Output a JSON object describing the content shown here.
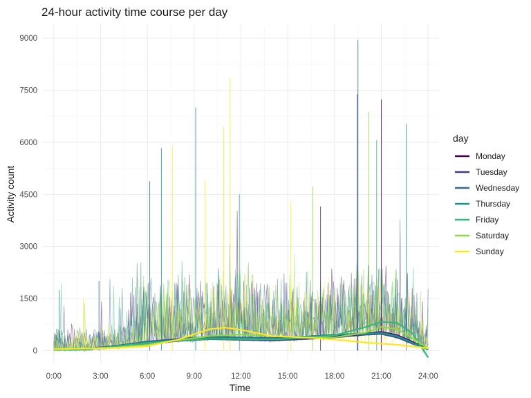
{
  "chart_data": {
    "type": "line",
    "title": "24-hour activity time course per day",
    "xlabel": "Time",
    "ylabel": "Activity count",
    "x_unit": "hours",
    "xlim": [
      -0.7,
      24.7
    ],
    "ylim": [
      -350,
      9400
    ],
    "x_ticks": [
      0,
      3,
      6,
      9,
      12,
      15,
      18,
      21,
      24
    ],
    "x_tick_labels": [
      "0:00",
      "3:00",
      "6:00",
      "9:00",
      "12:00",
      "15:00",
      "18:00",
      "21:00",
      "24:00"
    ],
    "y_ticks": [
      0,
      1500,
      3000,
      4500,
      6000,
      7500,
      9000
    ],
    "y_tick_labels": [
      "0",
      "1500",
      "3000",
      "4500",
      "6000",
      "7500",
      "9000"
    ],
    "grid": true,
    "legend": {
      "title": "day",
      "position": "right"
    },
    "colors": {
      "Monday": "#440154",
      "Tuesday": "#443A83",
      "Wednesday": "#31688E",
      "Thursday": "#21908C",
      "Friday": "#35B779",
      "Saturday": "#8FD744",
      "Sunday": "#FDE725"
    },
    "smooth_series": [
      {
        "name": "Monday",
        "x": [
          0,
          2,
          4,
          6,
          8,
          10,
          12,
          14,
          16,
          18,
          20,
          21,
          22,
          23,
          24
        ],
        "y": [
          40,
          40,
          120,
          200,
          320,
          350,
          320,
          300,
          340,
          400,
          500,
          540,
          450,
          250,
          50
        ]
      },
      {
        "name": "Tuesday",
        "x": [
          0,
          2,
          4,
          6,
          8,
          10,
          12,
          14,
          16,
          18,
          20,
          21,
          22,
          23,
          24
        ],
        "y": [
          40,
          40,
          110,
          190,
          280,
          330,
          310,
          290,
          330,
          380,
          460,
          480,
          380,
          200,
          40
        ]
      },
      {
        "name": "Wednesday",
        "x": [
          0,
          2,
          4,
          6,
          8,
          10,
          12,
          14,
          16,
          18,
          20,
          21,
          22,
          23,
          24
        ],
        "y": [
          60,
          50,
          140,
          260,
          340,
          400,
          380,
          360,
          400,
          450,
          500,
          520,
          430,
          230,
          50
        ]
      },
      {
        "name": "Thursday",
        "x": [
          0,
          2,
          4,
          6,
          8,
          10,
          12,
          14,
          16,
          18,
          20,
          21,
          22,
          23,
          24
        ],
        "y": [
          40,
          40,
          130,
          230,
          300,
          360,
          360,
          340,
          400,
          460,
          480,
          500,
          410,
          220,
          30
        ]
      },
      {
        "name": "Friday",
        "x": [
          0,
          2,
          4,
          6,
          8,
          10,
          12,
          14,
          16,
          18,
          20,
          21,
          22,
          23,
          24
        ],
        "y": [
          20,
          30,
          120,
          220,
          290,
          340,
          330,
          320,
          360,
          440,
          680,
          830,
          800,
          500,
          -200
        ]
      },
      {
        "name": "Saturday",
        "x": [
          0,
          2,
          4,
          6,
          8,
          10,
          12,
          14,
          16,
          18,
          20,
          21,
          22,
          23,
          24
        ],
        "y": [
          60,
          60,
          90,
          170,
          300,
          420,
          460,
          420,
          380,
          380,
          520,
          680,
          620,
          360,
          60
        ]
      },
      {
        "name": "Sunday",
        "x": [
          0,
          2,
          4,
          6,
          8,
          10,
          11,
          12,
          14,
          16,
          18,
          20,
          21,
          22,
          23,
          24
        ],
        "y": [
          40,
          60,
          80,
          130,
          320,
          620,
          660,
          600,
          420,
          380,
          320,
          230,
          200,
          170,
          120,
          70
        ]
      }
    ],
    "spikes": [
      {
        "name": "Tuesday",
        "x": 19.45,
        "y": 7380
      },
      {
        "name": "Wednesday",
        "x": 19.5,
        "y": 8950
      },
      {
        "name": "Monday",
        "x": 21.0,
        "y": 7230
      },
      {
        "name": "Saturday",
        "x": 20.2,
        "y": 6880
      },
      {
        "name": "Thursday",
        "x": 22.6,
        "y": 6530
      },
      {
        "name": "Sunday",
        "x": 11.3,
        "y": 7850
      },
      {
        "name": "Sunday",
        "x": 10.9,
        "y": 6450
      },
      {
        "name": "Thursday",
        "x": 9.1,
        "y": 7000
      },
      {
        "name": "Thursday",
        "x": 6.9,
        "y": 5830
      },
      {
        "name": "Sunday",
        "x": 7.6,
        "y": 5870
      },
      {
        "name": "Wednesday",
        "x": 6.15,
        "y": 4880
      },
      {
        "name": "Saturday",
        "x": 16.6,
        "y": 4720
      },
      {
        "name": "Sunday",
        "x": 15.2,
        "y": 4300
      },
      {
        "name": "Friday",
        "x": 11.9,
        "y": 4500
      },
      {
        "name": "Friday",
        "x": 20.7,
        "y": 6060
      },
      {
        "name": "Sunday",
        "x": 9.7,
        "y": 4900
      },
      {
        "name": "Tuesday",
        "x": 17.1,
        "y": 4150
      },
      {
        "name": "Thursday",
        "x": 0.35,
        "y": 1750
      },
      {
        "name": "Wednesday",
        "x": 2.9,
        "y": 2000
      },
      {
        "name": "Sunday",
        "x": 1.9,
        "y": 1500
      }
    ]
  }
}
